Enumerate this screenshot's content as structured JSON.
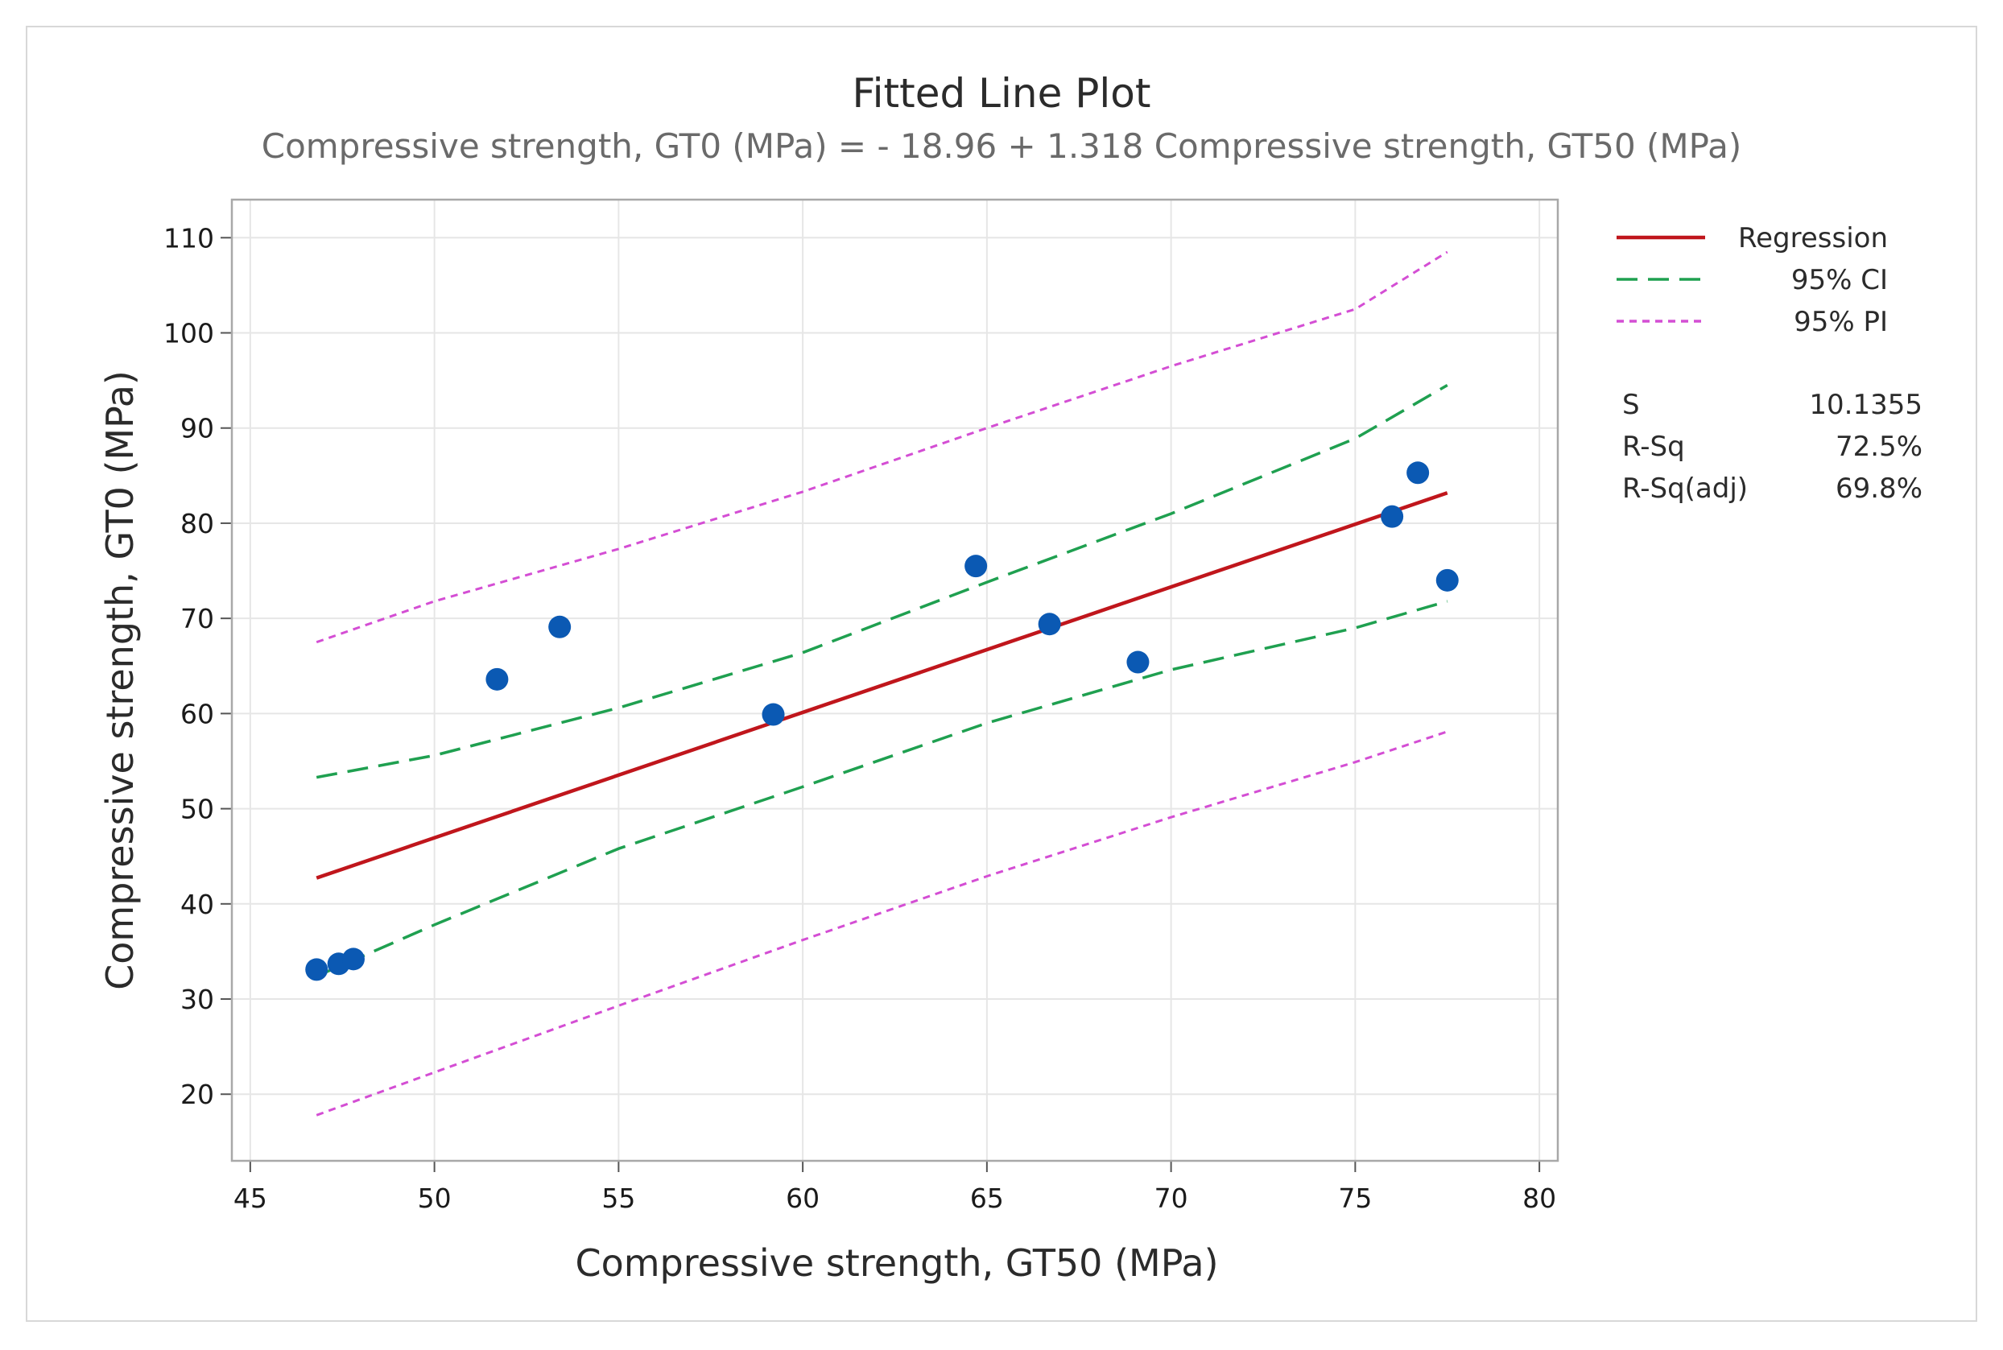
{
  "chart_data": {
    "type": "scatter",
    "title": "Fitted Line Plot",
    "subtitle": "Compressive strength, GT0 (MPa) = - 18.96 + 1.318 Compressive strength, GT50 (MPa)",
    "xlabel": "Compressive strength, GT50 (MPa)",
    "ylabel": "Compressive strength, GT0 (MPa)",
    "xlim": [
      44.5,
      80.5
    ],
    "ylim": [
      13,
      114
    ],
    "x_ticks": [
      45,
      50,
      55,
      60,
      65,
      70,
      75,
      80
    ],
    "y_ticks": [
      20,
      30,
      40,
      50,
      60,
      70,
      80,
      90,
      100,
      110
    ],
    "grid": true,
    "points": [
      {
        "x": 46.8,
        "y": 33.1
      },
      {
        "x": 47.4,
        "y": 33.7
      },
      {
        "x": 47.8,
        "y": 34.2
      },
      {
        "x": 51.7,
        "y": 63.6
      },
      {
        "x": 53.4,
        "y": 69.1
      },
      {
        "x": 59.2,
        "y": 59.9
      },
      {
        "x": 64.7,
        "y": 75.5
      },
      {
        "x": 66.7,
        "y": 69.4
      },
      {
        "x": 69.1,
        "y": 65.4
      },
      {
        "x": 76.0,
        "y": 80.7
      },
      {
        "x": 76.7,
        "y": 85.3
      },
      {
        "x": 77.5,
        "y": 74.0
      }
    ],
    "regression": {
      "intercept": -18.96,
      "slope": 1.318,
      "x_range": [
        46.8,
        77.5
      ]
    },
    "ci_upper": [
      [
        46.8,
        53.3
      ],
      [
        50,
        55.6
      ],
      [
        55,
        60.6
      ],
      [
        60,
        66.4
      ],
      [
        65,
        73.8
      ],
      [
        70,
        81.0
      ],
      [
        75,
        88.9
      ],
      [
        77.5,
        94.5
      ]
    ],
    "ci_lower": [
      [
        46.8,
        32.4
      ],
      [
        50,
        37.8
      ],
      [
        55,
        45.8
      ],
      [
        60,
        52.3
      ],
      [
        65,
        59.0
      ],
      [
        70,
        64.6
      ],
      [
        75,
        69.0
      ],
      [
        77.5,
        71.8
      ]
    ],
    "pi_upper": [
      [
        46.8,
        67.5
      ],
      [
        50,
        71.8
      ],
      [
        55,
        77.3
      ],
      [
        60,
        83.3
      ],
      [
        65,
        90.0
      ],
      [
        70,
        96.5
      ],
      [
        75,
        102.5
      ],
      [
        77.5,
        108.5
      ]
    ],
    "pi_lower": [
      [
        46.8,
        17.8
      ],
      [
        50,
        22.3
      ],
      [
        55,
        29.3
      ],
      [
        60,
        36.2
      ],
      [
        65,
        42.9
      ],
      [
        70,
        49.1
      ],
      [
        75,
        54.9
      ],
      [
        77.5,
        58.1
      ]
    ],
    "legend": {
      "position": "right",
      "entries": [
        {
          "label": "Regression",
          "color": "#c0161c",
          "style": "solid"
        },
        {
          "label": "95% CI",
          "color": "#1fa050",
          "style": "dashed"
        },
        {
          "label": "95% PI",
          "color": "#d44ed4",
          "style": "dotted"
        }
      ]
    },
    "stats": [
      {
        "label": "S",
        "value": "10.1355"
      },
      {
        "label": "R-Sq",
        "value": "72.5%"
      },
      {
        "label": "R-Sq(adj)",
        "value": "69.8%"
      }
    ],
    "colors": {
      "points": "#0b59b3",
      "regression": "#c0161c",
      "ci": "#1fa050",
      "pi": "#d44ed4",
      "grid": "#e6e6e6"
    }
  }
}
